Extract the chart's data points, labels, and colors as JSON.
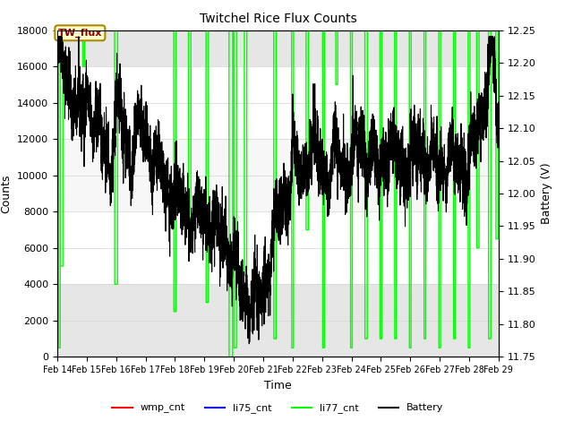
{
  "title": "Twitchel Rice Flux Counts",
  "xlabel": "Time",
  "ylabel_left": "Counts",
  "ylabel_right": "Battery (V)",
  "x_start": 14,
  "x_end": 29,
  "x_ticks": [
    14,
    15,
    16,
    17,
    18,
    19,
    20,
    21,
    22,
    23,
    24,
    25,
    26,
    27,
    28,
    29
  ],
  "x_tick_labels": [
    "Feb 14",
    "Feb 15",
    "Feb 16",
    "Feb 17",
    "Feb 18",
    "Feb 19",
    "Feb 20",
    "Feb 21",
    "Feb 22",
    "Feb 23",
    "Feb 24",
    "Feb 25",
    "Feb 26",
    "Feb 27",
    "Feb 28",
    "Feb 29"
  ],
  "ylim_left": [
    0,
    18000
  ],
  "ylim_right": [
    11.75,
    12.25
  ],
  "wmp_cnt_color": "#ff0000",
  "li75_cnt_color": "#0000ff",
  "li77_cnt_color": "#00ff00",
  "battery_color": "#000000",
  "background_color": "#ffffff",
  "band_color": "#d8d8d8",
  "annotation_text": "TW_flux",
  "annotation_bg": "#ffffcc",
  "annotation_border": "#aa8800",
  "legend_items": [
    "wmp_cnt",
    "li75_cnt",
    "li77_cnt",
    "Battery"
  ],
  "legend_colors": [
    "#ff0000",
    "#0000ff",
    "#00ff00",
    "#000000"
  ],
  "band_ymin": 4000,
  "band_ymax": 16000
}
